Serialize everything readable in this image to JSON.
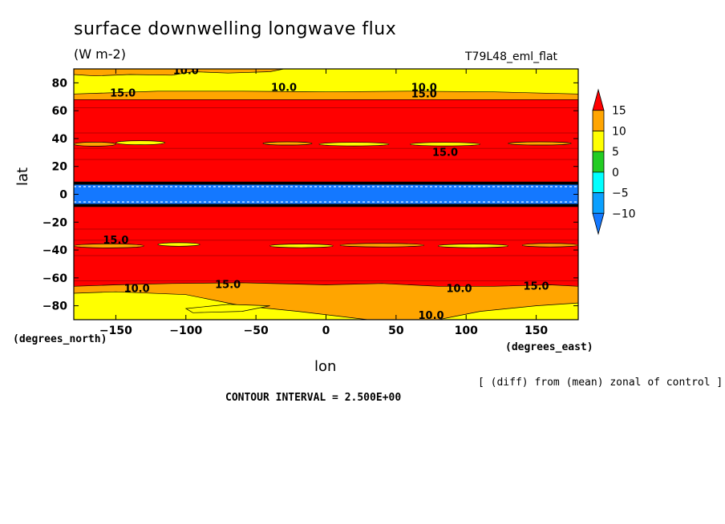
{
  "colors": {
    "c_lt_neg10": "#1478ff",
    "c_neg10_neg5": "#0aa0ff",
    "c_neg5_0": "#00ffff",
    "c_0_5": "#22cc22",
    "c_5_10": "#ffff00",
    "c_10_15": "#ffa500",
    "c_gt_15": "#ff0000"
  },
  "chart_data": {
    "type": "heatmap",
    "title": "surface downwelling longwave flux",
    "units": "(W m-2)",
    "dataset": "T79L48_eml_flat",
    "xlabel": "lon",
    "ylabel": "lat",
    "x_unit_label": "(degrees_east)",
    "y_unit_label": "(degrees_north)",
    "xlim": [
      -180,
      180
    ],
    "ylim": [
      -90,
      90
    ],
    "x_ticks": [
      -150,
      -100,
      -50,
      0,
      50,
      100,
      150
    ],
    "x_tick_labels": [
      "−150",
      "−100",
      "−50",
      "0",
      "50",
      "100",
      "150"
    ],
    "y_ticks": [
      -80,
      -60,
      -40,
      -20,
      0,
      20,
      40,
      60,
      80
    ],
    "y_tick_labels": [
      "−80",
      "−60",
      "−40",
      "−20",
      "0",
      "20",
      "40",
      "60",
      "80"
    ],
    "note": "[ (diff) from (mean) zonal of control ]",
    "contour_interval": "CONTOUR INTERVAL = 2.500E+00",
    "colorbar": {
      "levels": [
        -10,
        -5,
        0,
        5,
        10,
        15
      ],
      "labels": [
        "−10",
        "−5",
        "0",
        "5",
        "10",
        "15"
      ]
    },
    "zonal_bands": [
      {
        "lat_from": 80,
        "lat_to": 90,
        "value": "5-10"
      },
      {
        "lat_from": 67,
        "lat_to": 80,
        "value": "5-10"
      },
      {
        "lat_from": 8,
        "lat_to": 67,
        "value": ">15"
      },
      {
        "lat_from": -8,
        "lat_to": 8,
        "value": "<-10"
      },
      {
        "lat_from": -67,
        "lat_to": -8,
        "value": ">15"
      },
      {
        "lat_from": -90,
        "lat_to": -67,
        "value": "5-15"
      }
    ],
    "contour_labels": [
      "10.0",
      "10.0",
      "10.0",
      "15.0",
      "15.0",
      "15.0",
      "15.0",
      "15.0",
      "15.0",
      "10.0",
      "10.0",
      "10.0"
    ]
  }
}
